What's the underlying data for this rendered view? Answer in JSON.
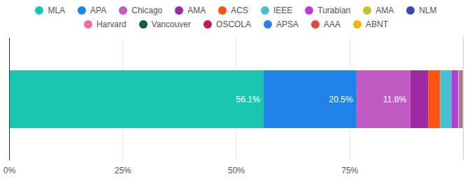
{
  "chart_data": {
    "type": "bar",
    "orientation": "horizontal",
    "stacked": true,
    "data_labels": true,
    "grid": true,
    "legend": "top",
    "categories": [
      null
    ],
    "xlim": [
      0,
      100
    ],
    "xticks": [
      {
        "value": 0,
        "label": "0%"
      },
      {
        "value": 25,
        "label": "25%"
      },
      {
        "value": 50,
        "label": "50%"
      },
      {
        "value": 75,
        "label": "75%"
      }
    ],
    "series": [
      {
        "name": "MLA",
        "color": "#1ac6b1",
        "values": [
          56.1
        ],
        "value_labels": [
          "56.1%"
        ]
      },
      {
        "name": "APA",
        "color": "#2083e8",
        "values": [
          20.5
        ],
        "value_labels": [
          "20.5%"
        ]
      },
      {
        "name": "Chicago",
        "color": "#c05bc4",
        "values": [
          11.8
        ],
        "value_labels": [
          "11.8%"
        ]
      },
      {
        "name": "AMA",
        "color": "#9b29a0",
        "values": [
          4.0
        ]
      },
      {
        "name": "ACS",
        "color": "#fd5410",
        "values": [
          2.6
        ]
      },
      {
        "name": "IEEE",
        "color": "#48bfd0",
        "values": [
          2.5
        ]
      },
      {
        "name": "Turabian",
        "color": "#b53fdb",
        "values": [
          1.5
        ]
      },
      {
        "name": "AMA",
        "color": "#c7c12e",
        "values": [
          0.2
        ]
      },
      {
        "name": "NLM",
        "color": "#3a49b0",
        "values": [
          0.15
        ]
      },
      {
        "name": "Harvard",
        "color": "#f06ea0",
        "values": [
          0.15
        ]
      },
      {
        "name": "Vancouver",
        "color": "#0b5e4c",
        "values": [
          0.1
        ]
      },
      {
        "name": "OSCOLA",
        "color": "#c2185b",
        "values": [
          0.15
        ]
      },
      {
        "name": "APSA",
        "color": "#2d7fe0",
        "values": [
          0.1
        ]
      },
      {
        "name": "AAA",
        "color": "#e0473c",
        "values": [
          0.1
        ]
      },
      {
        "name": "ABNT",
        "color": "#f6b400",
        "values": [
          0.05
        ]
      }
    ]
  }
}
